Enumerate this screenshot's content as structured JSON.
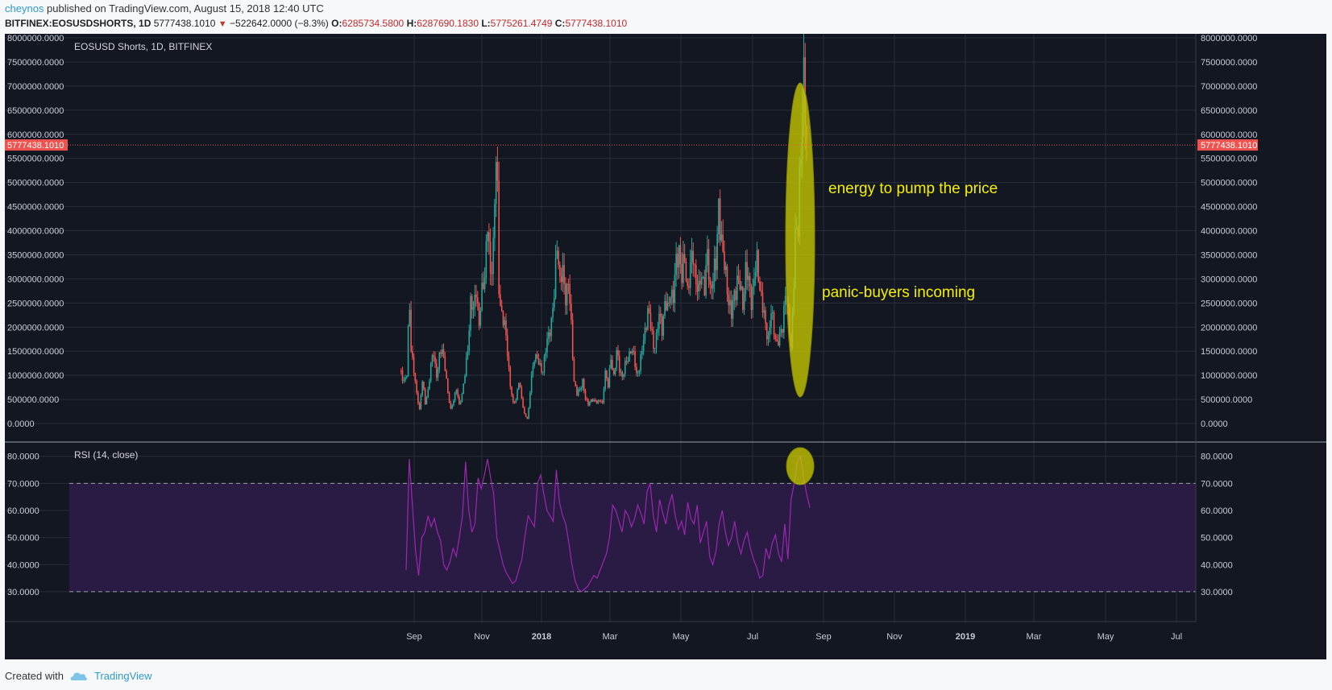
{
  "header": {
    "user": "cheynos",
    "published": "published on TradingView.com, August 15, 2018 12:40 UTC",
    "symbol": "BITFINEX:EOSUSDSHORTS, 1D",
    "last": "5777438.1010",
    "change_arrow": "▼",
    "change": "−522642.0000 (−8.3%)",
    "open_label": "O:",
    "open": "6285734.5800",
    "high_label": "H:",
    "high": "6287690.1830",
    "low_label": "L:",
    "low": "5775261.4749",
    "close_label": "C:",
    "close": "5777438.1010"
  },
  "footer": {
    "created": "Created with",
    "brand": "TradingView"
  },
  "colors": {
    "background": "#131722",
    "grid": "#2a2e39",
    "up": "#26a69a",
    "down": "#ef5350",
    "rsi_line": "#9c27b0",
    "rsi_band": "#2a1b45",
    "price_line": "#ef5350",
    "annotation_fill": "#c8c800",
    "annotation_text": "#f5f000"
  },
  "chart_data": [
    {
      "type": "candlestick",
      "title": "EOSUSD Shorts, 1D, BITFINEX",
      "ylim": [
        0,
        8000000
      ],
      "y_ticks": [
        "8000000.0000",
        "7500000.0000",
        "7000000.0000",
        "6500000.0000",
        "6000000.0000",
        "5500000.0000",
        "5000000.0000",
        "4500000.0000",
        "4000000.0000",
        "3500000.0000",
        "3000000.0000",
        "2500000.0000",
        "2000000.0000",
        "1500000.0000",
        "1000000.0000",
        "500000.0000",
        "0.0000"
      ],
      "last_price_label": "5777438.1010",
      "last_price": 5777438.101,
      "x_ticks": [
        "Sep",
        "Nov",
        "2018",
        "Mar",
        "May",
        "Jul",
        "Sep",
        "Nov",
        "2019",
        "Mar",
        "May",
        "Jul"
      ],
      "series_close": [
        [
          0,
          1100000
        ],
        [
          3,
          900000
        ],
        [
          5,
          1000000
        ],
        [
          6,
          1850000
        ],
        [
          7,
          2400000
        ],
        [
          8,
          1600000
        ],
        [
          10,
          1100000
        ],
        [
          12,
          600000
        ],
        [
          14,
          300000
        ],
        [
          16,
          900000
        ],
        [
          18,
          400000
        ],
        [
          20,
          700000
        ],
        [
          22,
          1200000
        ],
        [
          24,
          1450000
        ],
        [
          26,
          1000000
        ],
        [
          28,
          1350000
        ],
        [
          30,
          1550000
        ],
        [
          32,
          1200000
        ],
        [
          34,
          600000
        ],
        [
          36,
          300000
        ],
        [
          38,
          500000
        ],
        [
          40,
          700000
        ],
        [
          42,
          400000
        ],
        [
          44,
          600000
        ],
        [
          46,
          1000000
        ],
        [
          48,
          1600000
        ],
        [
          50,
          2500000
        ],
        [
          52,
          2300000
        ],
        [
          54,
          2900000
        ],
        [
          56,
          2000000
        ],
        [
          58,
          2700000
        ],
        [
          60,
          3200000
        ],
        [
          62,
          4100000
        ],
        [
          64,
          3000000
        ],
        [
          66,
          3800000
        ],
        [
          68,
          5450000
        ],
        [
          69,
          4600000
        ],
        [
          70,
          2800000
        ],
        [
          72,
          2300000
        ],
        [
          74,
          2000000
        ],
        [
          76,
          1500000
        ],
        [
          78,
          800000
        ],
        [
          80,
          400000
        ],
        [
          82,
          500000
        ],
        [
          84,
          900000
        ],
        [
          86,
          500000
        ],
        [
          88,
          200000
        ],
        [
          90,
          100000
        ],
        [
          91,
          300000
        ],
        [
          93,
          1000000
        ],
        [
          95,
          1400000
        ],
        [
          97,
          1300000
        ],
        [
          99,
          1200000
        ],
        [
          101,
          1100000
        ],
        [
          103,
          1500000
        ],
        [
          105,
          1900000
        ],
        [
          107,
          2100000
        ],
        [
          109,
          2600000
        ],
        [
          111,
          3900000
        ],
        [
          113,
          2900000
        ],
        [
          115,
          3100000
        ],
        [
          117,
          2700000
        ],
        [
          119,
          2900000
        ],
        [
          121,
          2000000
        ],
        [
          123,
          900000
        ],
        [
          125,
          600000
        ],
        [
          127,
          700000
        ],
        [
          129,
          900000
        ],
        [
          131,
          500000
        ],
        [
          133,
          400000
        ],
        [
          135,
          500000
        ],
        [
          137,
          450000
        ],
        [
          139,
          450000
        ],
        [
          141,
          500000
        ],
        [
          143,
          400000
        ],
        [
          145,
          1100000
        ],
        [
          147,
          800000
        ],
        [
          149,
          1300000
        ],
        [
          151,
          1000000
        ],
        [
          153,
          1500000
        ],
        [
          155,
          1100000
        ],
        [
          157,
          1000000
        ],
        [
          159,
          1200000
        ],
        [
          161,
          1300000
        ],
        [
          163,
          1600000
        ],
        [
          165,
          1400000
        ],
        [
          167,
          1000000
        ],
        [
          169,
          1200000
        ],
        [
          171,
          1500000
        ],
        [
          173,
          1900000
        ],
        [
          175,
          2400000
        ],
        [
          177,
          2000000
        ],
        [
          179,
          1600000
        ],
        [
          181,
          1800000
        ],
        [
          183,
          2200000
        ],
        [
          185,
          2000000
        ],
        [
          187,
          2500000
        ],
        [
          189,
          2300000
        ],
        [
          191,
          2800000
        ],
        [
          193,
          2600000
        ],
        [
          195,
          3300000
        ],
        [
          197,
          3700000
        ],
        [
          199,
          3000000
        ],
        [
          201,
          3400000
        ],
        [
          203,
          2800000
        ],
        [
          205,
          3200000
        ],
        [
          207,
          3500000
        ],
        [
          209,
          3000000
        ],
        [
          211,
          2700000
        ],
        [
          213,
          3100000
        ],
        [
          215,
          2900000
        ],
        [
          217,
          3400000
        ],
        [
          219,
          2800000
        ],
        [
          221,
          3100000
        ],
        [
          223,
          3200000
        ],
        [
          225,
          4600000
        ],
        [
          226,
          4200000
        ],
        [
          228,
          3400000
        ],
        [
          230,
          3100000
        ],
        [
          232,
          2600000
        ],
        [
          234,
          2200000
        ],
        [
          236,
          2700000
        ],
        [
          238,
          3000000
        ],
        [
          240,
          2800000
        ],
        [
          242,
          2500000
        ],
        [
          244,
          3200000
        ],
        [
          246,
          2900000
        ],
        [
          248,
          2600000
        ],
        [
          250,
          3000000
        ],
        [
          252,
          3300000
        ],
        [
          254,
          2900000
        ],
        [
          256,
          2400000
        ],
        [
          258,
          2000000
        ],
        [
          260,
          1800000
        ],
        [
          262,
          2300000
        ],
        [
          264,
          1900000
        ],
        [
          266,
          1700000
        ],
        [
          268,
          1750000
        ],
        [
          270,
          2000000
        ],
        [
          272,
          2800000
        ],
        [
          274,
          2200000
        ],
        [
          276,
          1600000
        ],
        [
          277,
          2300000
        ],
        [
          279,
          3800000
        ],
        [
          281,
          4000000
        ],
        [
          282,
          5200000
        ],
        [
          284,
          6600000
        ],
        [
          285,
          7000000
        ],
        [
          286,
          6300000
        ],
        [
          287,
          5777438
        ]
      ]
    },
    {
      "type": "line",
      "title": "RSI (14, close)",
      "ylim": [
        27,
        82
      ],
      "y_ticks": [
        "80.0000",
        "70.0000",
        "60.0000",
        "50.0000",
        "40.0000",
        "30.0000"
      ],
      "bands": [
        70,
        30
      ],
      "series_rsi": [
        [
          0,
          38
        ],
        [
          2,
          79
        ],
        [
          4,
          62
        ],
        [
          6,
          45
        ],
        [
          8,
          36
        ],
        [
          10,
          50
        ],
        [
          12,
          52
        ],
        [
          14,
          58
        ],
        [
          16,
          54
        ],
        [
          18,
          57
        ],
        [
          20,
          52
        ],
        [
          22,
          49
        ],
        [
          24,
          40
        ],
        [
          26,
          38
        ],
        [
          28,
          41
        ],
        [
          30,
          46
        ],
        [
          32,
          43
        ],
        [
          34,
          50
        ],
        [
          36,
          58
        ],
        [
          38,
          78
        ],
        [
          40,
          60
        ],
        [
          42,
          52
        ],
        [
          44,
          55
        ],
        [
          46,
          72
        ],
        [
          48,
          68
        ],
        [
          50,
          73
        ],
        [
          52,
          79
        ],
        [
          54,
          72
        ],
        [
          56,
          66
        ],
        [
          58,
          50
        ],
        [
          60,
          45
        ],
        [
          62,
          40
        ],
        [
          64,
          37
        ],
        [
          66,
          35
        ],
        [
          68,
          33
        ],
        [
          70,
          34
        ],
        [
          72,
          38
        ],
        [
          74,
          42
        ],
        [
          76,
          51
        ],
        [
          78,
          58
        ],
        [
          80,
          56
        ],
        [
          82,
          54
        ],
        [
          84,
          70
        ],
        [
          86,
          73
        ],
        [
          88,
          66
        ],
        [
          90,
          60
        ],
        [
          92,
          58
        ],
        [
          94,
          56
        ],
        [
          96,
          75
        ],
        [
          98,
          63
        ],
        [
          100,
          58
        ],
        [
          102,
          55
        ],
        [
          104,
          48
        ],
        [
          106,
          40
        ],
        [
          108,
          34
        ],
        [
          110,
          31
        ],
        [
          112,
          30
        ],
        [
          114,
          31
        ],
        [
          116,
          32
        ],
        [
          118,
          34
        ],
        [
          120,
          36
        ],
        [
          122,
          35
        ],
        [
          124,
          38
        ],
        [
          126,
          41
        ],
        [
          128,
          44
        ],
        [
          130,
          50
        ],
        [
          132,
          62
        ],
        [
          134,
          60
        ],
        [
          136,
          56
        ],
        [
          138,
          52
        ],
        [
          140,
          60
        ],
        [
          142,
          58
        ],
        [
          144,
          54
        ],
        [
          146,
          57
        ],
        [
          148,
          62
        ],
        [
          150,
          59
        ],
        [
          152,
          55
        ],
        [
          154,
          67
        ],
        [
          156,
          70
        ],
        [
          158,
          58
        ],
        [
          160,
          52
        ],
        [
          162,
          64
        ],
        [
          164,
          59
        ],
        [
          166,
          55
        ],
        [
          168,
          62
        ],
        [
          170,
          66
        ],
        [
          172,
          58
        ],
        [
          174,
          53
        ],
        [
          176,
          56
        ],
        [
          178,
          51
        ],
        [
          180,
          63
        ],
        [
          182,
          57
        ],
        [
          184,
          55
        ],
        [
          186,
          62
        ],
        [
          188,
          48
        ],
        [
          190,
          52
        ],
        [
          192,
          56
        ],
        [
          194,
          43
        ],
        [
          196,
          40
        ],
        [
          198,
          45
        ],
        [
          200,
          55
        ],
        [
          202,
          60
        ],
        [
          204,
          52
        ],
        [
          206,
          47
        ],
        [
          208,
          50
        ],
        [
          210,
          56
        ],
        [
          212,
          48
        ],
        [
          214,
          44
        ],
        [
          216,
          49
        ],
        [
          218,
          52
        ],
        [
          220,
          46
        ],
        [
          222,
          42
        ],
        [
          224,
          39
        ],
        [
          226,
          35
        ],
        [
          228,
          36
        ],
        [
          230,
          46
        ],
        [
          232,
          42
        ],
        [
          234,
          48
        ],
        [
          236,
          51
        ],
        [
          238,
          44
        ],
        [
          240,
          41
        ],
        [
          242,
          55
        ],
        [
          244,
          42
        ],
        [
          246,
          64
        ],
        [
          248,
          70
        ],
        [
          250,
          78
        ],
        [
          252,
          80
        ],
        [
          254,
          72
        ],
        [
          256,
          66
        ],
        [
          258,
          61
        ]
      ]
    }
  ],
  "annotations": {
    "pump_text": "energy to pump the price",
    "panic_text": "panic-buyers incoming"
  }
}
